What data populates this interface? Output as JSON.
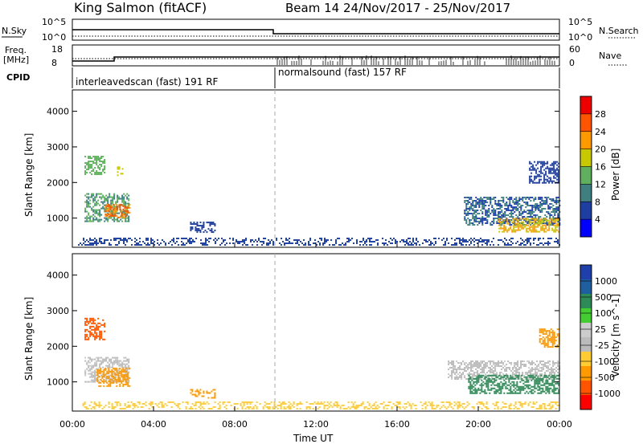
{
  "header": {
    "station": "King Salmon (fitACF)",
    "beam_info": "Beam 14  24/Nov/2017 - 25/Nov/2017"
  },
  "params": {
    "nsky_label": "N.Sky",
    "nsearch_label": "N.Search",
    "freq_label": "Freq.",
    "freq_unit": "[MHz]",
    "nave_label": "Nave",
    "cpid_label": "CPID",
    "nsky_ticks": [
      "10^5",
      "10^0"
    ],
    "nsearch_ticks": [
      "10^5",
      "10^0"
    ],
    "freq_ticks": [
      "18",
      "8"
    ],
    "nave_ticks": [
      "60",
      "0"
    ],
    "cpid_segments": [
      {
        "label": "interleavedscan (fast) 191 RF",
        "start_hour": 0,
        "end_hour": 10
      },
      {
        "label": "normalsound (fast) 157 RF",
        "start_hour": 10,
        "end_hour": 24
      }
    ]
  },
  "axes": {
    "xlabel": "Time UT",
    "x_ticks": [
      "00:00",
      "04:00",
      "08:00",
      "12:00",
      "16:00",
      "20:00",
      "00:00"
    ],
    "ylabel": "Slant Range [km]",
    "y_ticks": [
      "1000",
      "2000",
      "3000",
      "4000"
    ]
  },
  "colors": {
    "power": [
      "#0000ff",
      "#1f3fa0",
      "#3f7f7f",
      "#5faf5f",
      "#c8c800",
      "#ff9900",
      "#ff5500",
      "#ee0000"
    ],
    "velocity": [
      "#ff0000",
      "#ff5500",
      "#ff9900",
      "#ffcc33",
      "#bbbbbb",
      "#cccccc",
      "#44cc33",
      "#2e8b57",
      "#1f5fa0",
      "#1f3faa"
    ]
  },
  "chart_data": [
    {
      "type": "heatmap",
      "title": "",
      "xlabel": "Time UT",
      "ylabel": "Slant Range [km]",
      "xlim": [
        0,
        24
      ],
      "ylim": [
        180,
        4600
      ],
      "colorbar": {
        "label": "Power [dB]",
        "ticks": [
          "4",
          "8",
          "12",
          "16",
          "20",
          "24",
          "28"
        ],
        "range": [
          0,
          32
        ]
      },
      "regions": [
        {
          "t0": 0.6,
          "t1": 2.8,
          "r0": 900,
          "r1": 1700,
          "value": 14
        },
        {
          "t0": 1.6,
          "t1": 2.8,
          "r0": 1000,
          "r1": 1400,
          "value": 26
        },
        {
          "t0": 0.6,
          "t1": 1.6,
          "r0": 2250,
          "r1": 2750,
          "value": 16
        },
        {
          "t0": 2.2,
          "t1": 2.5,
          "r0": 2200,
          "r1": 2450,
          "value": 20
        },
        {
          "t0": 5.8,
          "t1": 7.0,
          "r0": 600,
          "r1": 900,
          "value": 8
        },
        {
          "t0": 0.2,
          "t1": 24.0,
          "r0": 250,
          "r1": 450,
          "value": 8
        },
        {
          "t0": 19.3,
          "t1": 24.0,
          "r0": 800,
          "r1": 1600,
          "value": 10
        },
        {
          "t0": 21.0,
          "t1": 24.0,
          "r0": 600,
          "r1": 1000,
          "value": 22
        },
        {
          "t0": 22.5,
          "t1": 24.0,
          "r0": 2000,
          "r1": 2600,
          "value": 8
        }
      ]
    },
    {
      "type": "heatmap",
      "title": "",
      "xlabel": "Time UT",
      "ylabel": "Slant Range [km]",
      "xlim": [
        0,
        24
      ],
      "ylim": [
        180,
        4600
      ],
      "colorbar": {
        "label": "Velocity [m s^-1]",
        "ticks": [
          "-1000",
          "-500",
          "-100",
          "-25",
          "25",
          "100",
          "500",
          "1000"
        ],
        "range": [
          -1200,
          1200
        ]
      },
      "regions": [
        {
          "t0": 0.6,
          "t1": 2.8,
          "r0": 1000,
          "r1": 1700,
          "value": 0
        },
        {
          "t0": 1.2,
          "t1": 2.8,
          "r0": 900,
          "r1": 1400,
          "value": -150
        },
        {
          "t0": 0.6,
          "t1": 1.6,
          "r0": 2200,
          "r1": 2800,
          "value": -300
        },
        {
          "t0": 5.8,
          "t1": 7.0,
          "r0": 550,
          "r1": 800,
          "value": -200
        },
        {
          "t0": 0.5,
          "t1": 24.0,
          "r0": 250,
          "r1": 450,
          "value": -60
        },
        {
          "t0": 18.5,
          "t1": 24.0,
          "r0": 1100,
          "r1": 1600,
          "value": 0
        },
        {
          "t0": 19.5,
          "t1": 24.0,
          "r0": 700,
          "r1": 1200,
          "value": 150
        },
        {
          "t0": 23.0,
          "t1": 24.0,
          "r0": 2000,
          "r1": 2500,
          "value": -200
        }
      ]
    }
  ]
}
